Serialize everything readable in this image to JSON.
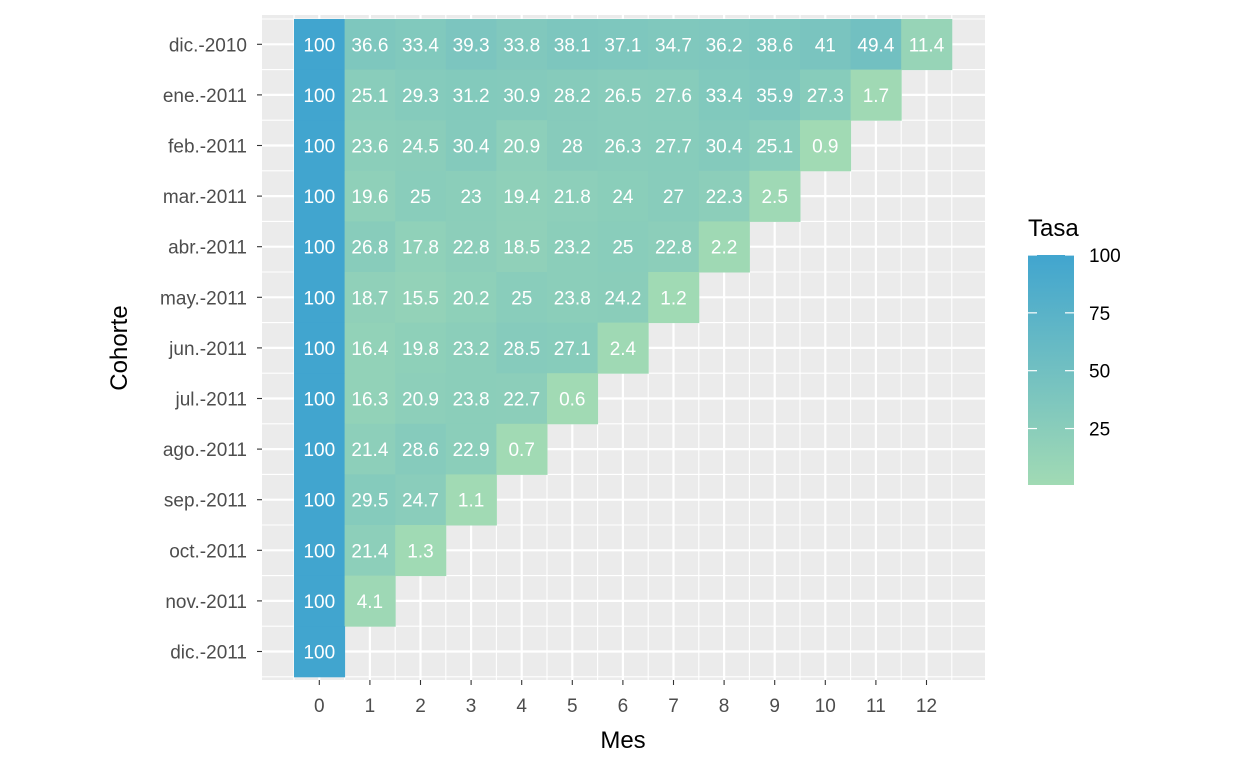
{
  "chart_data": {
    "type": "heatmap",
    "title": "",
    "xlabel": "Mes",
    "ylabel": "Cohorte",
    "x_categories": [
      "0",
      "1",
      "2",
      "3",
      "4",
      "5",
      "6",
      "7",
      "8",
      "9",
      "10",
      "11",
      "12"
    ],
    "y_categories": [
      "dic.-2010",
      "ene.-2011",
      "feb.-2011",
      "mar.-2011",
      "abr.-2011",
      "may.-2011",
      "jun.-2011",
      "jul.-2011",
      "ago.-2011",
      "sep.-2011",
      "oct.-2011",
      "nov.-2011",
      "dic.-2011"
    ],
    "values": [
      [
        100,
        36.6,
        33.4,
        39.3,
        33.8,
        38.1,
        37.1,
        34.7,
        36.2,
        38.6,
        41,
        49.4,
        11.4
      ],
      [
        100,
        25.1,
        29.3,
        31.2,
        30.9,
        28.2,
        26.5,
        27.6,
        33.4,
        35.9,
        27.3,
        1.7
      ],
      [
        100,
        23.6,
        24.5,
        30.4,
        20.9,
        28,
        26.3,
        27.7,
        30.4,
        25.1,
        0.9
      ],
      [
        100,
        19.6,
        25,
        23,
        19.4,
        21.8,
        24,
        27,
        22.3,
        2.5
      ],
      [
        100,
        26.8,
        17.8,
        22.8,
        18.5,
        23.2,
        25,
        22.8,
        2.2
      ],
      [
        100,
        18.7,
        15.5,
        20.2,
        25,
        23.8,
        24.2,
        1.2
      ],
      [
        100,
        16.4,
        19.8,
        23.2,
        28.5,
        27.1,
        2.4
      ],
      [
        100,
        16.3,
        20.9,
        23.8,
        22.7,
        0.6
      ],
      [
        100,
        21.4,
        28.6,
        22.9,
        0.7
      ],
      [
        100,
        29.5,
        24.7,
        1.1
      ],
      [
        100,
        21.4,
        1.3
      ],
      [
        100,
        4.1
      ],
      [
        100
      ]
    ],
    "color_low": "#a1dab4",
    "color_high": "#41a5cf",
    "panel_background": "#ebebeb",
    "grid_color": "#ffffff",
    "legend": {
      "title": "Tasa",
      "position": "right",
      "breaks": [
        100,
        75,
        50,
        25
      ],
      "range": [
        0.6,
        100
      ]
    },
    "grid": true
  }
}
